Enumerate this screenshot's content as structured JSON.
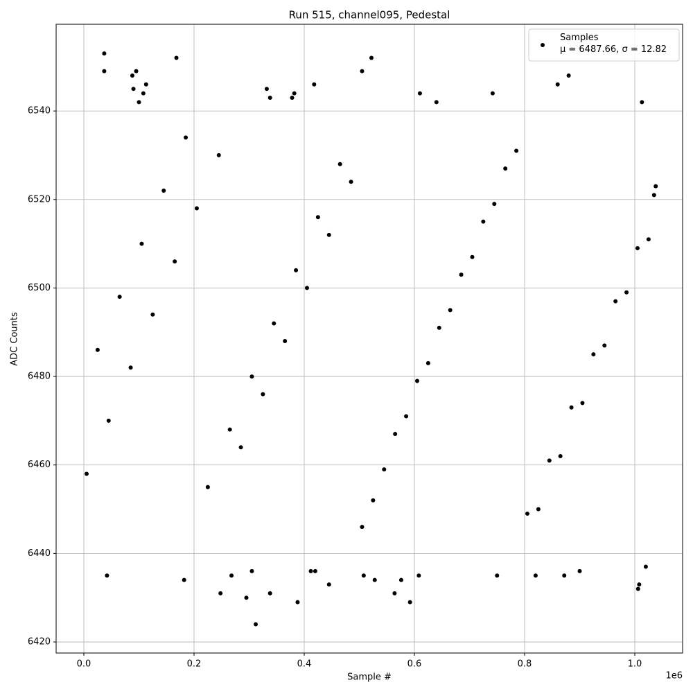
{
  "chart_data": {
    "type": "scatter",
    "title": "Run 515, channel095, Pedestal",
    "x_label": "Sample #",
    "y_label": "ADC Counts",
    "x_offset_label": "1e6",
    "xlim": [
      -50300,
      1086800
    ],
    "ylim": [
      6417.5,
      6559.6
    ],
    "xticks": [
      {
        "value": 0,
        "label": "0.0"
      },
      {
        "value": 200000,
        "label": "0.2"
      },
      {
        "value": 400000,
        "label": "0.4"
      },
      {
        "value": 600000,
        "label": "0.6"
      },
      {
        "value": 800000,
        "label": "0.8"
      },
      {
        "value": 1000000,
        "label": "1.0"
      }
    ],
    "yticks": [
      6420,
      6440,
      6460,
      6480,
      6500,
      6520,
      6540
    ],
    "grid": true,
    "legend": "upper right",
    "series": [
      {
        "name": "Samples\nμ = 6487.66, σ = 12.82",
        "color": "#000000",
        "x": [
          37000,
          37000,
          168000,
          522000,
          505000,
          95000,
          88000,
          880000,
          113000,
          418000,
          860000,
          332000,
          90000,
          108000,
          382000,
          610000,
          742000,
          338000,
          378000,
          1013000,
          640000,
          100000,
          312000,
          388000,
          592000,
          295000,
          248000,
          564000,
          338000,
          1006000,
          1008000,
          268000,
          42000,
          508000,
          608000,
          750000,
          820000,
          872000,
          528000,
          182000,
          576000,
          445000,
          305000,
          412000,
          1020000,
          900000,
          420000,
          5000,
          45000,
          85000,
          125000,
          165000,
          205000,
          245000,
          285000,
          325000,
          365000,
          405000,
          445000,
          485000,
          525000,
          565000,
          605000,
          645000,
          685000,
          725000,
          765000,
          805000,
          845000,
          885000,
          925000,
          965000,
          1005000,
          1035000,
          25000,
          65000,
          105000,
          145000,
          185000,
          225000,
          265000,
          305000,
          345000,
          385000,
          425000,
          465000,
          505000,
          545000,
          585000,
          625000,
          665000,
          705000,
          745000,
          785000,
          825000,
          865000,
          905000,
          945000,
          985000,
          1025000,
          1038000
        ],
        "y": [
          6553,
          6549,
          6552,
          6552,
          6549,
          6549,
          6548,
          6548,
          6546,
          6546,
          6546,
          6545,
          6545,
          6544,
          6544,
          6544,
          6544,
          6543,
          6543,
          6542,
          6542,
          6542,
          6424,
          6429,
          6429,
          6430,
          6431,
          6431,
          6431,
          6432,
          6433,
          6435,
          6435,
          6435,
          6435,
          6435,
          6435,
          6435,
          6434,
          6434,
          6434,
          6433,
          6436,
          6436,
          6437,
          6436,
          6436,
          6458,
          6470,
          6482,
          6494,
          6506,
          6518,
          6530,
          6464,
          6476,
          6488,
          6500,
          6512,
          6524,
          6452,
          6467,
          6479,
          6491,
          6503,
          6515,
          6527,
          6449,
          6461,
          6473,
          6485,
          6497,
          6509,
          6521,
          6486,
          6498,
          6510,
          6522,
          6534,
          6455,
          6468,
          6480,
          6492,
          6504,
          6516,
          6528,
          6446,
          6459,
          6471,
          6483,
          6495,
          6507,
          6519,
          6531,
          6450,
          6462,
          6474,
          6487,
          6499,
          6511,
          6523
        ]
      }
    ]
  }
}
